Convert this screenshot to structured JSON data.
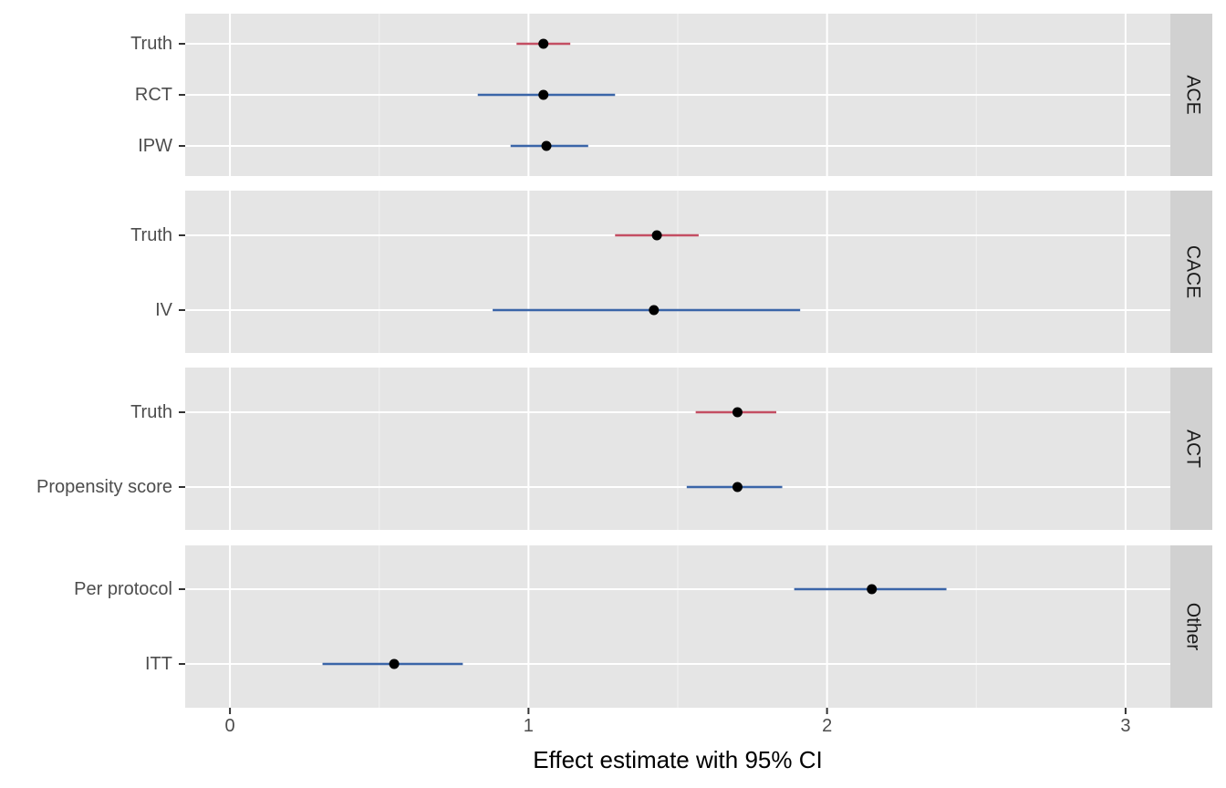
{
  "chart_data": {
    "type": "forest",
    "xlabel": "Effect estimate with 95% CI",
    "xlim": [
      -0.15,
      3.15
    ],
    "x_ticks": [
      0,
      1,
      2,
      3
    ],
    "x_tick_labels": [
      "0",
      "1",
      "2",
      "3"
    ],
    "grid": true,
    "colors": {
      "truth": "#c44e63",
      "estimate": "#3a65a8",
      "point": "#000000",
      "panel_bg": "#e5e5e5",
      "strip_bg": "#d1d1d1",
      "grid": "#ffffff"
    },
    "panels": [
      {
        "facet": "ACE",
        "rows": [
          {
            "label": "Truth",
            "kind": "truth",
            "estimate": 1.05,
            "lower": 0.96,
            "upper": 1.14
          },
          {
            "label": "RCT",
            "kind": "estimate",
            "estimate": 1.05,
            "lower": 0.83,
            "upper": 1.29
          },
          {
            "label": "IPW",
            "kind": "estimate",
            "estimate": 1.06,
            "lower": 0.94,
            "upper": 1.2
          }
        ]
      },
      {
        "facet": "CACE",
        "rows": [
          {
            "label": "Truth",
            "kind": "truth",
            "estimate": 1.43,
            "lower": 1.29,
            "upper": 1.57
          },
          {
            "label": "IV",
            "kind": "estimate",
            "estimate": 1.42,
            "lower": 0.88,
            "upper": 1.91
          }
        ]
      },
      {
        "facet": "ACT",
        "rows": [
          {
            "label": "Truth",
            "kind": "truth",
            "estimate": 1.7,
            "lower": 1.56,
            "upper": 1.83
          },
          {
            "label": "Propensity score",
            "kind": "estimate",
            "estimate": 1.7,
            "lower": 1.53,
            "upper": 1.85
          }
        ]
      },
      {
        "facet": "Other",
        "rows": [
          {
            "label": "Per protocol",
            "kind": "estimate",
            "estimate": 2.15,
            "lower": 1.89,
            "upper": 2.4
          },
          {
            "label": "ITT",
            "kind": "estimate",
            "estimate": 0.55,
            "lower": 0.31,
            "upper": 0.78
          }
        ]
      }
    ]
  }
}
